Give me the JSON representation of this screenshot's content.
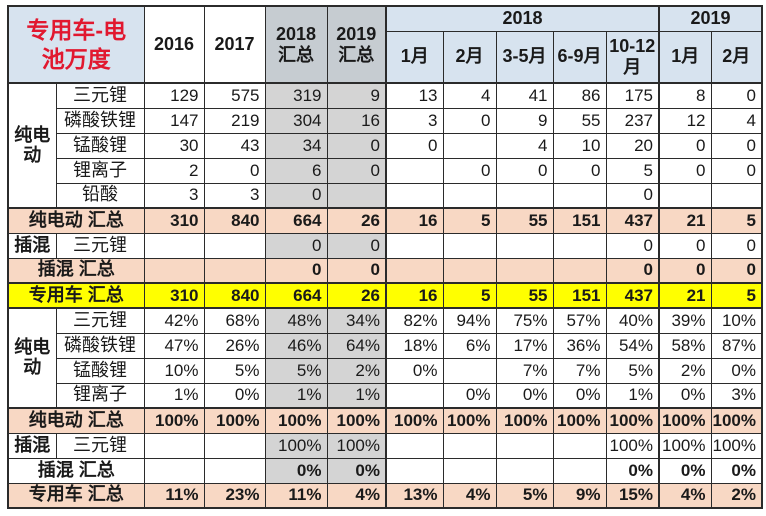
{
  "title": "专用车-电池万度",
  "colors": {
    "header_blue": "#d7e3ef",
    "summary_header_gray": "#c6ccd1",
    "summary_cell_gray": "#d4d4d4",
    "total_row_salmon": "#f8d8c4",
    "grand_total_yellow": "#ffff00",
    "title_red": "#e1182f",
    "grid": "#2b2b2b"
  },
  "header": {
    "years": [
      "2016",
      "2017"
    ],
    "totals": [
      "2018 汇总",
      "2019 汇总"
    ],
    "groups": [
      {
        "label": "2018",
        "months": [
          "1月",
          "2月",
          "3-5月",
          "6-9月",
          "10-12月"
        ]
      },
      {
        "label": "2019",
        "months": [
          "1月",
          "2月"
        ]
      }
    ]
  },
  "rows": [
    {
      "kind": "data",
      "group": {
        "label": "纯电动",
        "span": 5
      },
      "label": "三元锂",
      "values": [
        "129",
        "575",
        "319",
        "9",
        "13",
        "4",
        "41",
        "86",
        "175",
        "8",
        "0"
      ]
    },
    {
      "kind": "data",
      "label": "磷酸铁锂",
      "values": [
        "147",
        "219",
        "304",
        "16",
        "3",
        "0",
        "9",
        "55",
        "237",
        "12",
        "4"
      ]
    },
    {
      "kind": "data",
      "label": "锰酸锂",
      "values": [
        "30",
        "43",
        "34",
        "0",
        "0",
        "",
        "4",
        "10",
        "20",
        "0",
        "0"
      ]
    },
    {
      "kind": "data",
      "label": "锂离子",
      "values": [
        "2",
        "0",
        "6",
        "0",
        "",
        "0",
        "0",
        "0",
        "5",
        "0",
        "0"
      ]
    },
    {
      "kind": "data",
      "label": "铅酸",
      "values": [
        "3",
        "3",
        "0",
        "",
        "",
        "",
        "",
        "",
        "0",
        "",
        ""
      ]
    },
    {
      "kind": "total",
      "style": "salmon",
      "label": "纯电动 汇总",
      "values": [
        "310",
        "840",
        "664",
        "26",
        "16",
        "5",
        "55",
        "151",
        "437",
        "21",
        "5"
      ]
    },
    {
      "kind": "data",
      "group": {
        "label": "插混",
        "span": 1
      },
      "label": "三元锂",
      "values": [
        "",
        "",
        "0",
        "0",
        "",
        "",
        "",
        "",
        "0",
        "0",
        "0"
      ]
    },
    {
      "kind": "total",
      "style": "salmon",
      "label": "插混 汇总",
      "values": [
        "",
        "",
        "0",
        "0",
        "",
        "",
        "",
        "",
        "0",
        "0",
        "0"
      ]
    },
    {
      "kind": "total",
      "style": "yellow",
      "label": "专用车 汇总",
      "values": [
        "310",
        "840",
        "664",
        "26",
        "16",
        "5",
        "55",
        "151",
        "437",
        "21",
        "5"
      ]
    },
    {
      "kind": "data",
      "group": {
        "label": "纯电动",
        "span": 4
      },
      "label": "三元锂",
      "values": [
        "42%",
        "68%",
        "48%",
        "34%",
        "82%",
        "94%",
        "75%",
        "57%",
        "40%",
        "39%",
        "10%"
      ]
    },
    {
      "kind": "data",
      "label": "磷酸铁锂",
      "values": [
        "47%",
        "26%",
        "46%",
        "64%",
        "18%",
        "6%",
        "17%",
        "36%",
        "54%",
        "58%",
        "87%"
      ]
    },
    {
      "kind": "data",
      "label": "锰酸锂",
      "values": [
        "10%",
        "5%",
        "5%",
        "2%",
        "0%",
        "",
        "7%",
        "7%",
        "5%",
        "2%",
        "0%"
      ]
    },
    {
      "kind": "data",
      "label": "锂离子",
      "values": [
        "1%",
        "0%",
        "1%",
        "1%",
        "",
        "0%",
        "0%",
        "0%",
        "1%",
        "0%",
        "3%"
      ]
    },
    {
      "kind": "total",
      "style": "salmon",
      "label": "纯电动 汇总",
      "values": [
        "100%",
        "100%",
        "100%",
        "100%",
        "100%",
        "100%",
        "100%",
        "100%",
        "100%",
        "100%",
        "100%"
      ]
    },
    {
      "kind": "data",
      "group": {
        "label": "插混",
        "span": 1
      },
      "label": "三元锂",
      "values": [
        "",
        "",
        "100%",
        "100%",
        "",
        "",
        "",
        "",
        "100%",
        "100%",
        "100%"
      ]
    },
    {
      "kind": "total",
      "style": "plain",
      "label": "插混 汇总",
      "values": [
        "",
        "",
        "0%",
        "0%",
        "",
        "",
        "",
        "",
        "0%",
        "0%",
        "0%"
      ]
    },
    {
      "kind": "total",
      "style": "salmon",
      "label": "专用车 汇总",
      "values": [
        "11%",
        "23%",
        "11%",
        "4%",
        "13%",
        "4%",
        "5%",
        "9%",
        "15%",
        "4%",
        "2%"
      ]
    }
  ]
}
